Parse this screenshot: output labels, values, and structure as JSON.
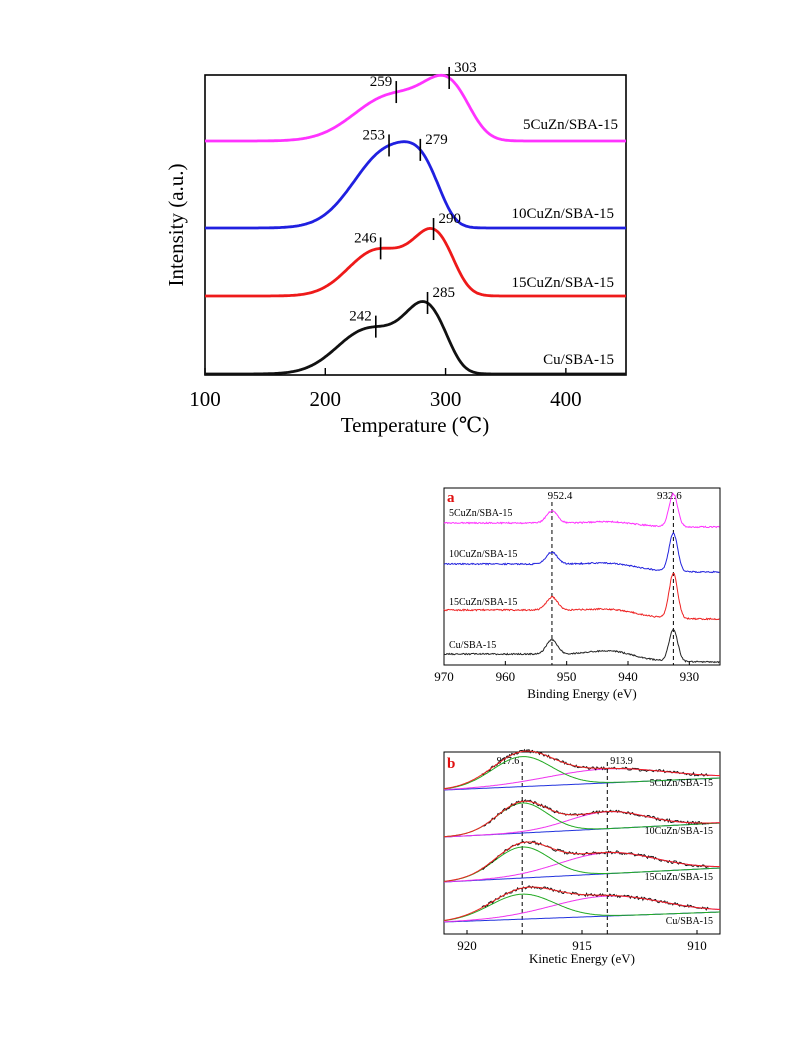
{
  "chart_data": [
    {
      "type": "line",
      "xlabel": "Temperature (℃)",
      "ylabel": "Intensity (a.u.)",
      "xlim": [
        100,
        450
      ],
      "xticks": [
        100,
        200,
        300,
        400
      ],
      "series": [
        {
          "name": "5CuZn/SBA-15",
          "color": "#ff33ff",
          "peaks": [
            259,
            303
          ]
        },
        {
          "name": "10CuZn/SBA-15",
          "color": "#2020e0",
          "peaks": [
            253,
            279
          ]
        },
        {
          "name": "15CuZn/SBA-15",
          "color": "#ee1a1a",
          "peaks": [
            246,
            290
          ]
        },
        {
          "name": "Cu/SBA-15",
          "color": "#111111",
          "peaks": [
            242,
            285
          ]
        }
      ]
    },
    {
      "type": "line",
      "panel_label": "a",
      "xlabel": "Binding Energy (eV)",
      "xlim": [
        970,
        925
      ],
      "xticks": [
        970,
        960,
        950,
        940,
        930
      ],
      "reference_lines": [
        952.4,
        932.6
      ],
      "series": [
        {
          "name": "5CuZn/SBA-15",
          "color": "#ff33ff"
        },
        {
          "name": "10CuZn/SBA-15",
          "color": "#2222dd"
        },
        {
          "name": "15CuZn/SBA-15",
          "color": "#ee2222"
        },
        {
          "name": "Cu/SBA-15",
          "color": "#222222"
        }
      ]
    },
    {
      "type": "line",
      "panel_label": "b",
      "xlabel": "Kinetic Energy (eV)",
      "xlim": [
        921,
        909
      ],
      "xticks": [
        920,
        915,
        910
      ],
      "reference_lines": [
        917.6,
        913.9
      ],
      "series": [
        {
          "name": "5CuZn/SBA-15"
        },
        {
          "name": "10CuZn/SBA-15"
        },
        {
          "name": "15CuZn/SBA-15"
        },
        {
          "name": "Cu/SBA-15"
        }
      ]
    }
  ]
}
